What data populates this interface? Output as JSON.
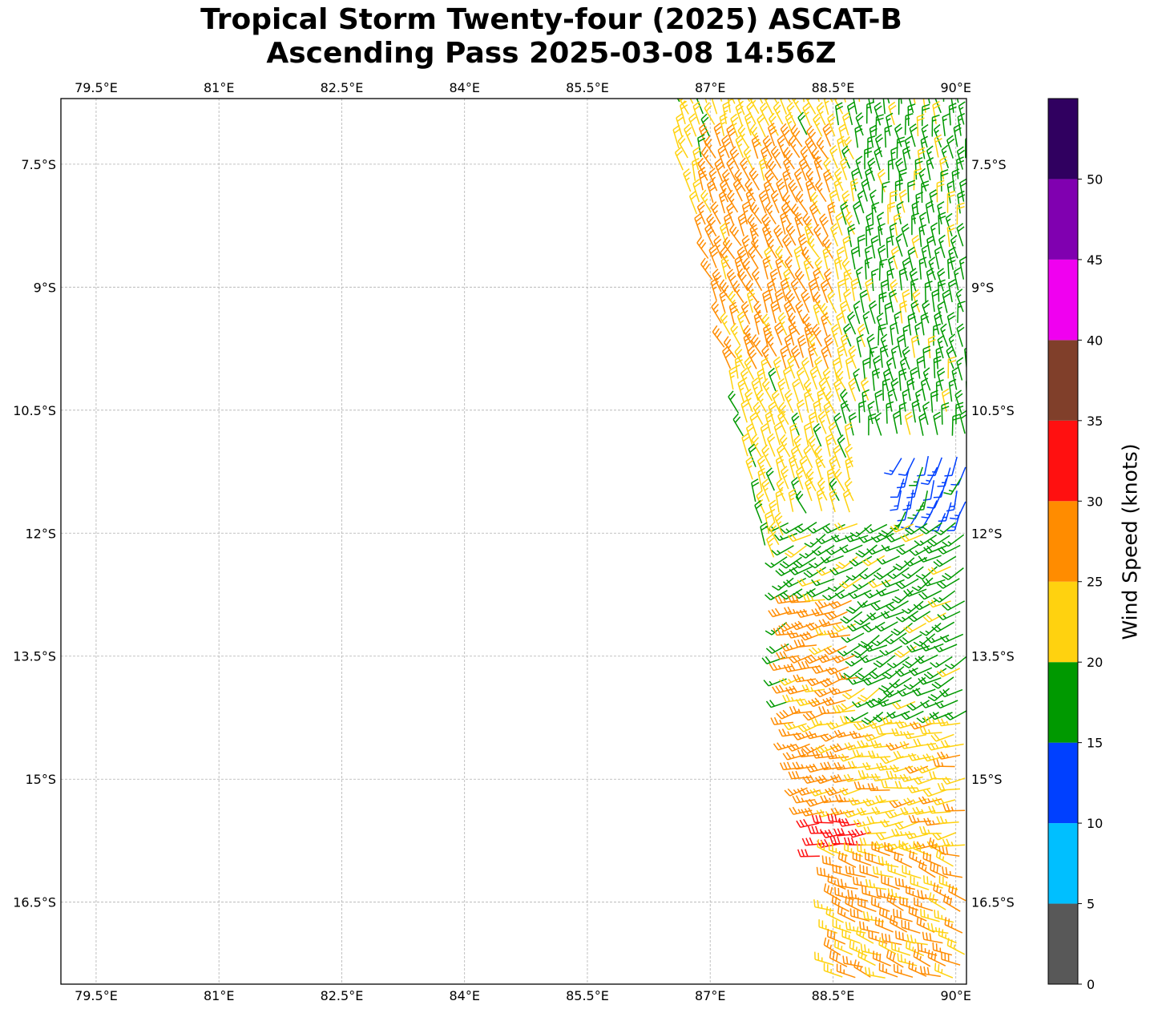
{
  "title_line1": "Tropical Storm Twenty-four (2025) ASCAT-B",
  "title_line2": "Ascending Pass 2025-03-08 14:56Z",
  "lon_ticks": [
    "79.5°E",
    "81°E",
    "82.5°E",
    "84°E",
    "85.5°E",
    "87°E",
    "88.5°E",
    "90°E"
  ],
  "lat_ticks": [
    "7.5°S",
    "9°S",
    "10.5°S",
    "12°S",
    "13.5°S",
    "15°S",
    "16.5°S"
  ],
  "colorbar": {
    "label": "Wind Speed (knots)",
    "tick_labels": [
      "0",
      "5",
      "10",
      "15",
      "20",
      "25",
      "30",
      "35",
      "40",
      "45",
      "50"
    ],
    "bins": [
      {
        "min": 0,
        "max": 5,
        "color": "#585858"
      },
      {
        "min": 5,
        "max": 10,
        "color": "#00bfff"
      },
      {
        "min": 10,
        "max": 15,
        "color": "#0040ff"
      },
      {
        "min": 15,
        "max": 20,
        "color": "#009900"
      },
      {
        "min": 20,
        "max": 25,
        "color": "#ffd20f"
      },
      {
        "min": 25,
        "max": 30,
        "color": "#ff8c00"
      },
      {
        "min": 30,
        "max": 35,
        "color": "#ff1010"
      },
      {
        "min": 35,
        "max": 40,
        "color": "#803f2a"
      },
      {
        "min": 40,
        "max": 45,
        "color": "#f000f0"
      },
      {
        "min": 45,
        "max": 50,
        "color": "#8000b0"
      },
      {
        "min": 50,
        "max": 55,
        "color": "#300060"
      }
    ]
  },
  "chart_data": {
    "type": "wind-barb map",
    "title": "Tropical Storm Twenty-four (2025) ASCAT-B Ascending Pass 2025-03-08 14:56Z",
    "lon_range_E": [
      79.07,
      90.13
    ],
    "lat_range_S": [
      6.7,
      17.5
    ],
    "gridlines": true,
    "units": "knots",
    "swath_edge_points": [
      {
        "lon": 86.4,
        "lat": 6.7
      },
      {
        "lon": 86.9,
        "lat": 8.5
      },
      {
        "lon": 87.3,
        "lat": 10.5
      },
      {
        "lon": 87.6,
        "lat": 12.0
      },
      {
        "lon": 87.8,
        "lat": 13.0
      },
      {
        "lon": 88.0,
        "lat": 14.5
      },
      {
        "lon": 88.3,
        "lat": 15.9
      },
      {
        "lon": 88.5,
        "lat": 17.5
      }
    ],
    "wind_regions": [
      {
        "name": "northwest swath",
        "lon": [
          86.6,
          88.8
        ],
        "lat": [
          6.7,
          12.4
        ],
        "speed_kt": 22,
        "direction_deg": 340
      },
      {
        "name": "northwest swath gust cells",
        "lon": [
          86.9,
          88.5
        ],
        "lat": [
          7.2,
          10.0
        ],
        "speed_kt": 27,
        "direction_deg": 335
      },
      {
        "name": "northeast swath",
        "lon": [
          88.8,
          90.13
        ],
        "lat": [
          6.7,
          10.8
        ],
        "speed_kt": 18,
        "direction_deg": 350
      },
      {
        "name": "storm center light winds",
        "lon": [
          89.3,
          90.13
        ],
        "lat": [
          11.0,
          12.0
        ],
        "speed_kt": 13,
        "direction_deg": 200
      },
      {
        "name": "central circulation",
        "lon": [
          87.9,
          90.13
        ],
        "lat": [
          11.8,
          14.8
        ],
        "speed_kt": 18,
        "direction_deg": 240
      },
      {
        "name": "southwest swath",
        "lon": [
          88.0,
          88.8
        ],
        "lat": [
          12.8,
          15.5
        ],
        "speed_kt": 27,
        "direction_deg": 255
      },
      {
        "name": "south central",
        "lon": [
          88.8,
          90.13
        ],
        "lat": [
          14.3,
          16.0
        ],
        "speed_kt": 23,
        "direction_deg": 260
      },
      {
        "name": "southern strong band",
        "lon": [
          88.3,
          89.0
        ],
        "lat": [
          15.4,
          16.0
        ],
        "speed_kt": 33,
        "direction_deg": 265
      },
      {
        "name": "far south swath",
        "lon": [
          88.5,
          90.13
        ],
        "lat": [
          15.8,
          17.5
        ],
        "speed_kt": 26,
        "direction_deg": 290
      }
    ]
  }
}
